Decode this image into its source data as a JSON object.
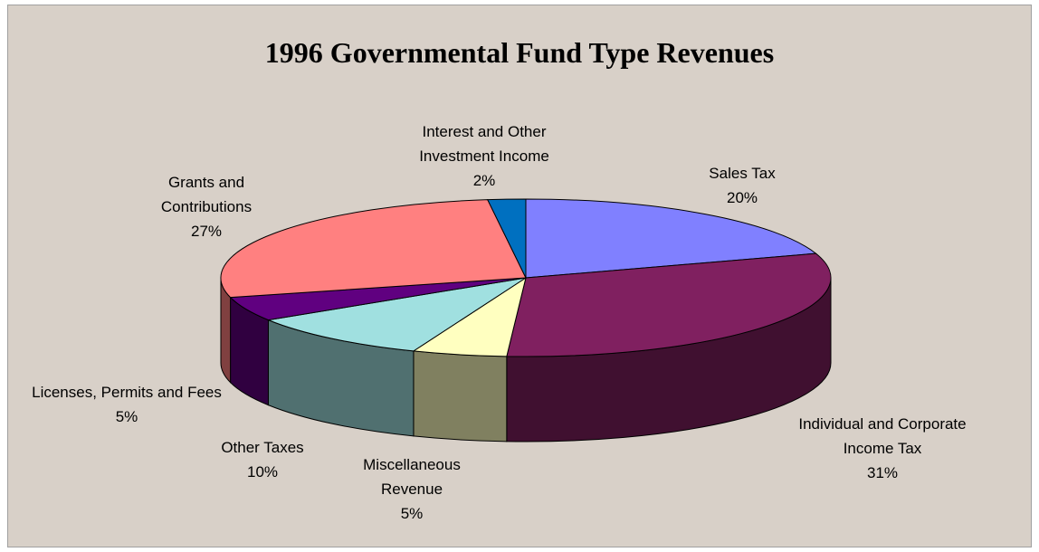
{
  "chart_data": {
    "type": "pie",
    "title": "1996 Governmental Fund Type Revenues",
    "categories": [
      "Sales Tax",
      "Individual and Corporate Income Tax",
      "Miscellaneous Revenue",
      "Other Taxes",
      "Licenses, Permits and Fees",
      "Grants and Contributions",
      "Interest and Other Investment Income"
    ],
    "values": [
      20,
      31,
      5,
      10,
      5,
      27,
      2
    ],
    "value_labels": [
      "20%",
      "31%",
      "5%",
      "10%",
      "5%",
      "27%",
      "2%"
    ],
    "colors": [
      "#8080ff",
      "#802060",
      "#ffffc0",
      "#a0e0e0",
      "#600080",
      "#ff8080",
      "#0070c0"
    ]
  }
}
